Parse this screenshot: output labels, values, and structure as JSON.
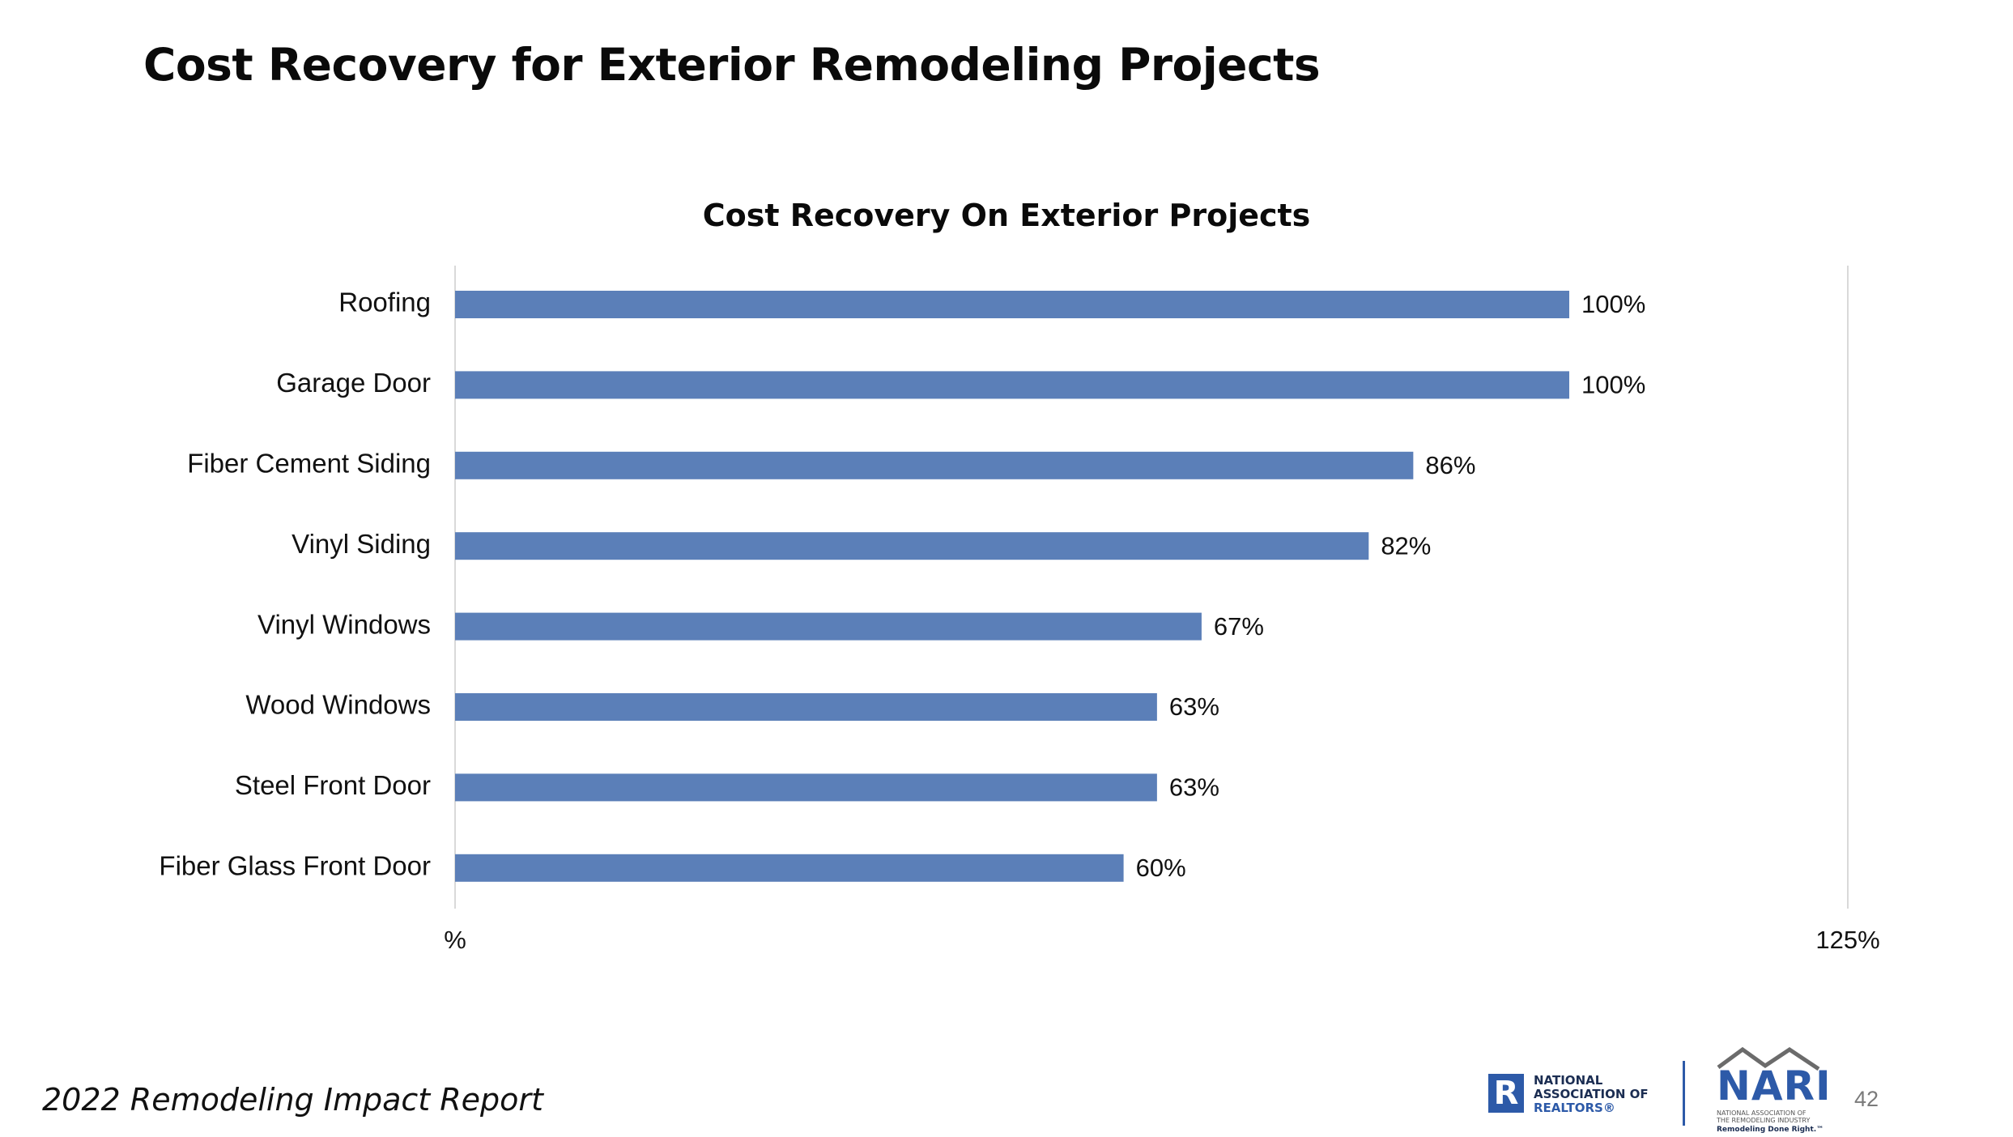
{
  "slide": {
    "title": "Cost Recovery for Exterior Remodeling Projects",
    "footer_title": "2022 Remodeling Impact Report",
    "page_number": "42"
  },
  "logos": {
    "nar": {
      "mark": "R",
      "line1": "NATIONAL",
      "line2": "ASSOCIATION OF",
      "line3": "REALTORS®"
    },
    "nari": {
      "wordmark": "NARI",
      "sub1": "NATIONAL ASSOCIATION OF",
      "sub2": "THE REMODELING INDUSTRY",
      "tagline": "Remodeling Done Right.™"
    }
  },
  "colors": {
    "bar": "#5b7fb8",
    "gridline": "#d9d9d9",
    "text": "#111111",
    "brand_blue": "#2d5aa8"
  },
  "chart_data": {
    "type": "bar",
    "orientation": "horizontal",
    "title": "Cost Recovery On Exterior Projects",
    "categories": [
      "Roofing",
      "Garage Door",
      "Fiber Cement Siding",
      "Vinyl Siding",
      "Vinyl Windows",
      "Wood Windows",
      "Steel Front Door",
      "Fiber Glass Front Door"
    ],
    "values": [
      100,
      100,
      86,
      82,
      67,
      63,
      63,
      60
    ],
    "data_labels": [
      "100%",
      "100%",
      "86%",
      "82%",
      "67%",
      "63%",
      "63%",
      "60%"
    ],
    "xlim": [
      0,
      125
    ],
    "x_tick_labels": [
      "%",
      "125%"
    ],
    "grid": false,
    "legend": "none"
  }
}
